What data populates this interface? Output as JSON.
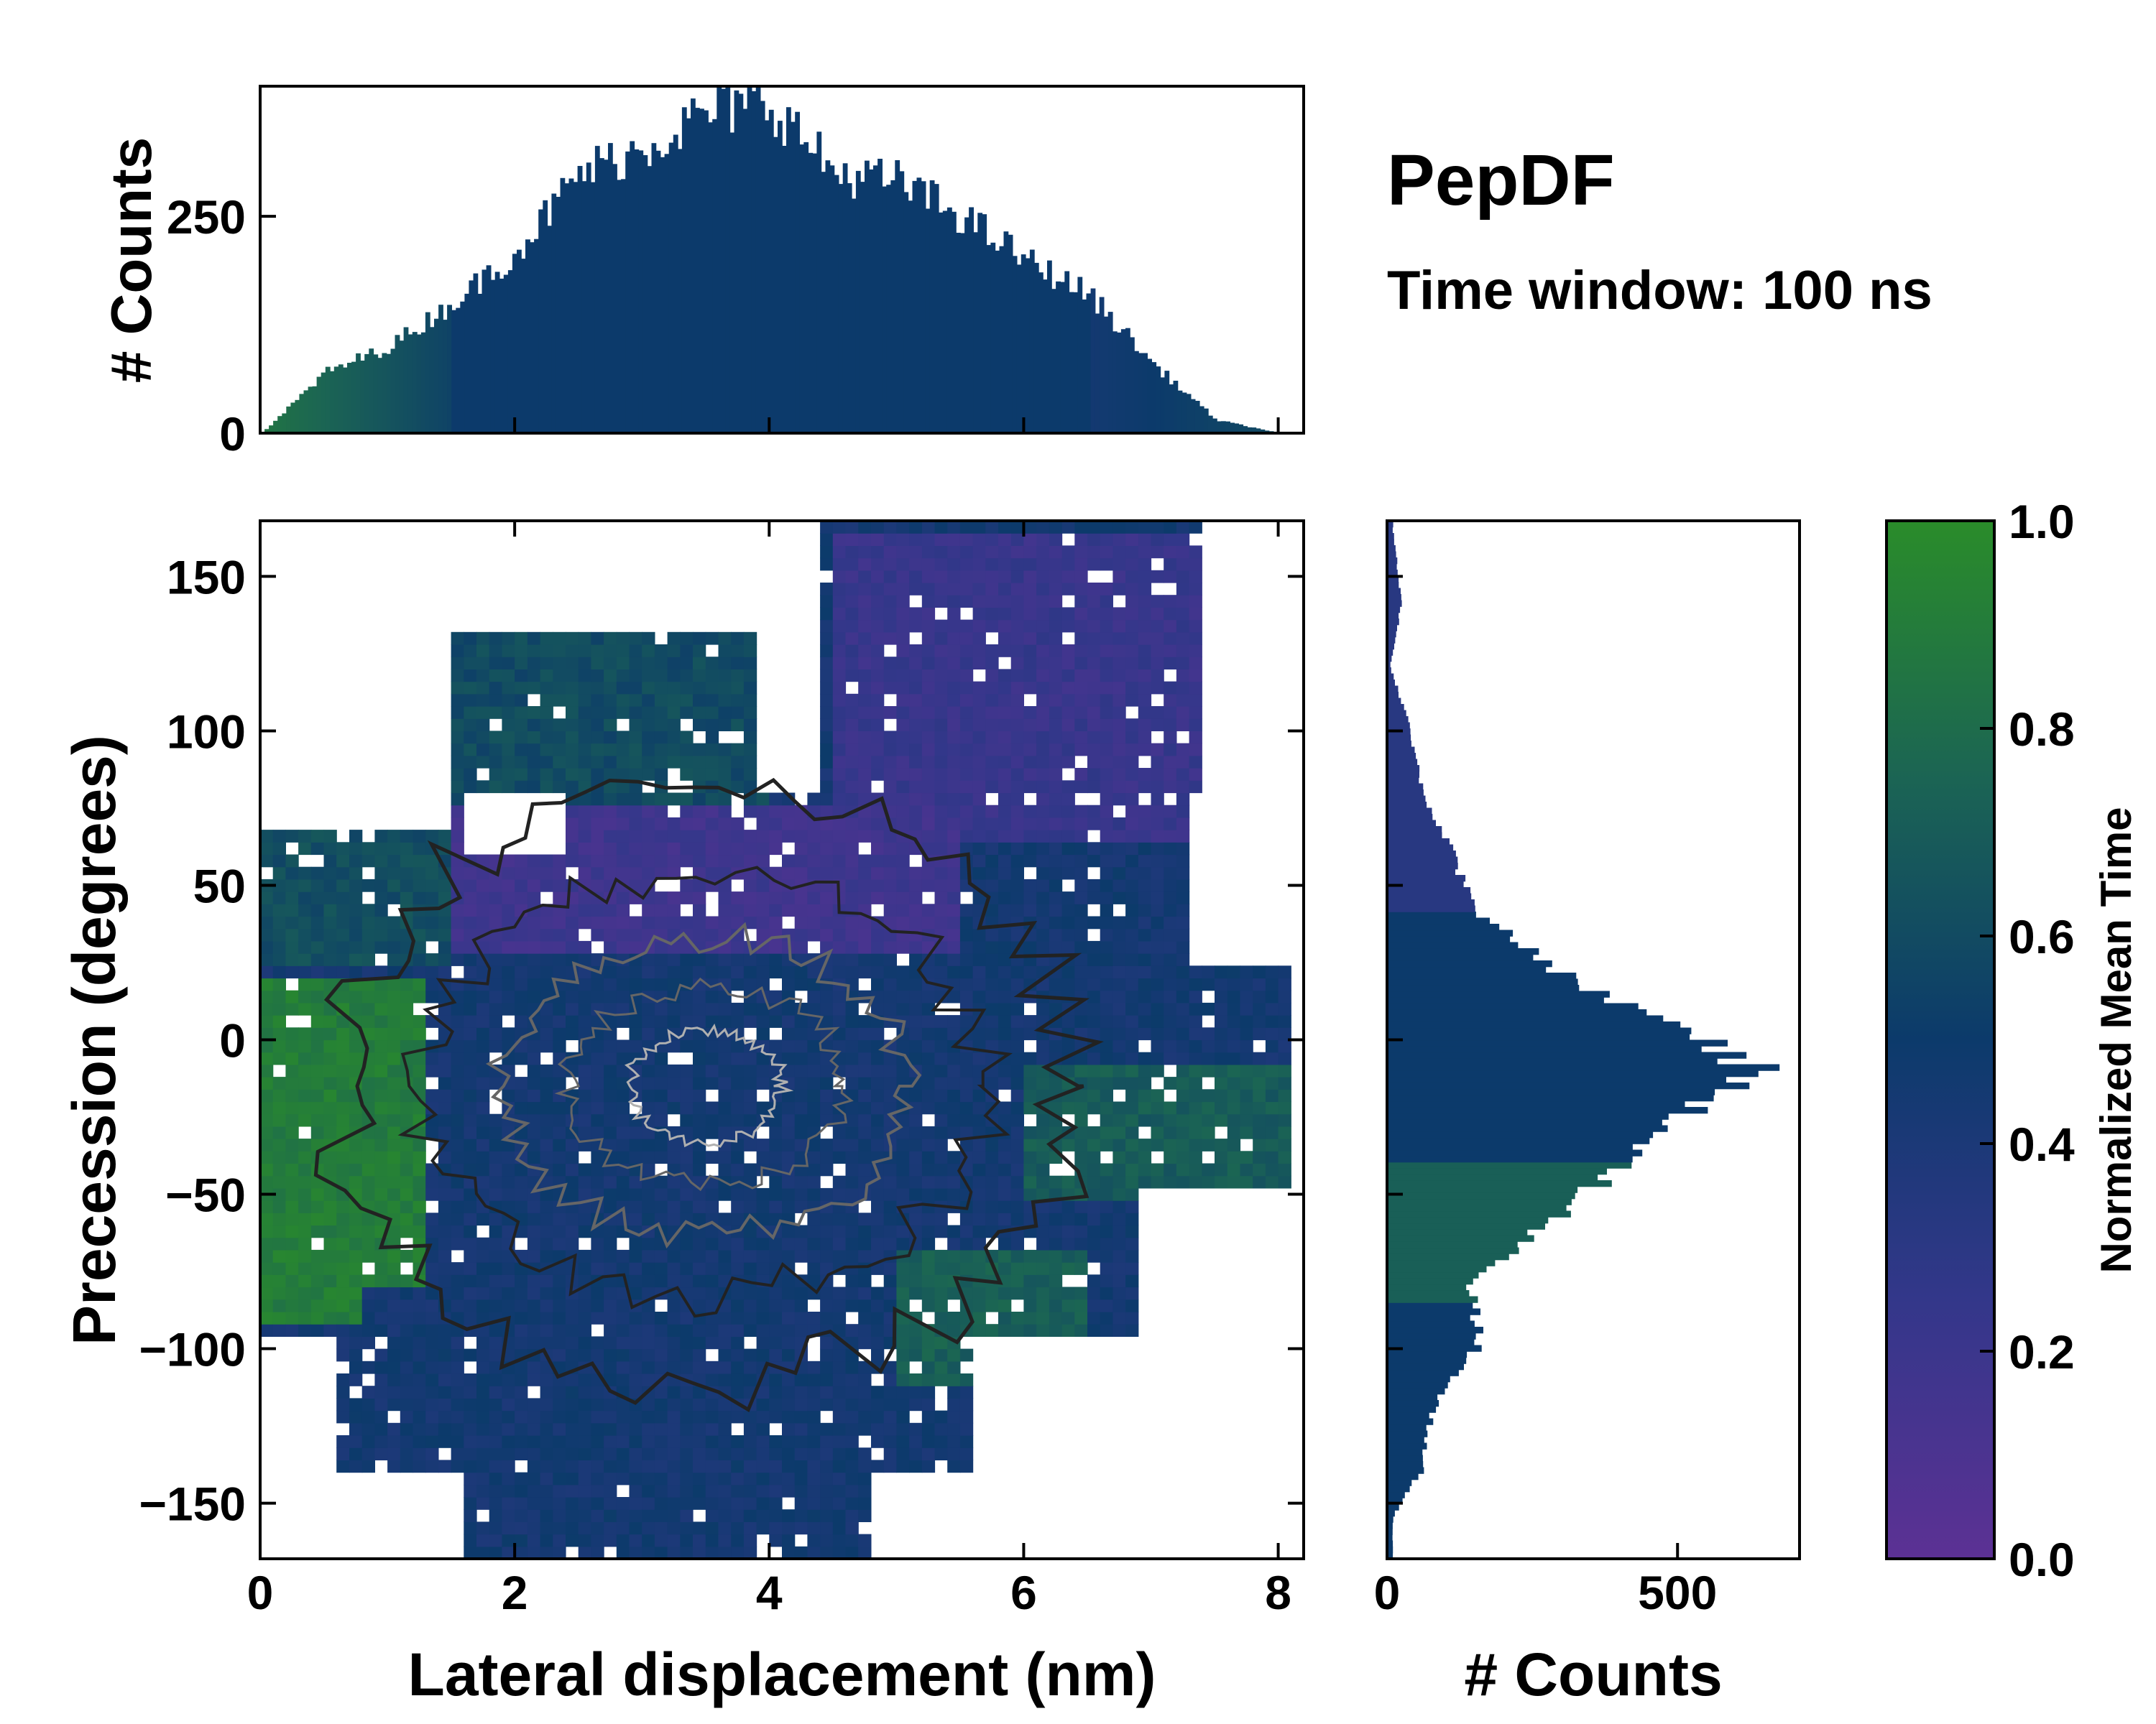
{
  "title": "PepDF",
  "subtitle": "Time window: 100 ns",
  "colors": {
    "low": "#5c3194",
    "mid": "#0c3a6b",
    "high": "#2a8c2a",
    "contour_dark": "#222222",
    "contour_mid": "#666666",
    "contour_light": "#b0b0b0"
  },
  "chart_data": [
    {
      "id": "main_2d_histogram",
      "type": "heatmap",
      "xlabel": "Lateral displacement (nm)",
      "ylabel": "Precession (degrees)",
      "xlim": [
        0,
        8.2
      ],
      "ylim": [
        -168,
        168
      ],
      "xticks": [
        0,
        2,
        4,
        6,
        8
      ],
      "xticklabels": [
        "0",
        "2",
        "4",
        "6",
        "8"
      ],
      "yticks": [
        -150,
        -100,
        -50,
        0,
        50,
        100,
        150
      ],
      "yticklabels": [
        "−150",
        "−100",
        "−50",
        "0",
        "50",
        "100",
        "150"
      ],
      "color_meaning": "Normalized Mean Time",
      "regions": [
        {
          "name": "upper-right lobe",
          "x_range": [
            4.5,
            7.5
          ],
          "y_range": [
            65,
            165
          ],
          "mean_time": 0.22
        },
        {
          "name": "upper-left lobe",
          "x_range": [
            1.2,
            4.0
          ],
          "y_range": [
            70,
            130
          ],
          "mean_time": 0.6
        },
        {
          "name": "left edge band",
          "x_range": [
            0,
            1.5
          ],
          "y_range": [
            25,
            70
          ],
          "mean_time": 0.62
        },
        {
          "name": "purple center band",
          "x_range": [
            1.5,
            5.5
          ],
          "y_range": [
            30,
            75
          ],
          "mean_time": 0.18
        },
        {
          "name": "left green core",
          "x_range": [
            0,
            1.3
          ],
          "y_range": [
            -90,
            20
          ],
          "mean_time": 0.9
        },
        {
          "name": "center core",
          "x_range": [
            1.5,
            6.5
          ],
          "y_range": [
            -80,
            20
          ],
          "mean_time": 0.45
        },
        {
          "name": "right green lobe",
          "x_range": [
            6.0,
            8.1
          ],
          "y_range": [
            -50,
            -10
          ],
          "mean_time": 0.7
        },
        {
          "name": "bottom-right green",
          "x_range": [
            5.0,
            6.5
          ],
          "y_range": [
            -110,
            -70
          ],
          "mean_time": 0.72
        },
        {
          "name": "bottom lobe",
          "x_range": [
            0.8,
            5.0
          ],
          "y_range": [
            -160,
            -80
          ],
          "mean_time": 0.45
        }
      ],
      "density_peak": {
        "x": 3.5,
        "y": -15
      }
    },
    {
      "id": "top_marginal_histogram",
      "type": "bar",
      "xlim": [
        0,
        8.2
      ],
      "ylim": [
        0,
        400
      ],
      "ylabel": "# Counts",
      "yticks": [
        0,
        250
      ],
      "yticklabels": [
        "0",
        "250"
      ],
      "x": [
        0.0,
        0.5,
        1.0,
        1.5,
        2.0,
        2.5,
        3.0,
        3.5,
        4.0,
        4.5,
        5.0,
        5.5,
        6.0,
        6.5,
        7.0,
        7.5,
        8.0
      ],
      "values": [
        0,
        70,
        100,
        150,
        210,
        300,
        330,
        370,
        380,
        300,
        290,
        250,
        200,
        160,
        80,
        15,
        0
      ]
    },
    {
      "id": "right_marginal_histogram",
      "type": "bar",
      "orientation": "horizontal",
      "xlabel": "# Counts",
      "xlim": [
        0,
        710
      ],
      "xticks": [
        0,
        500
      ],
      "xticklabels": [
        "0",
        "500"
      ],
      "y": [
        165,
        140,
        120,
        100,
        80,
        60,
        40,
        20,
        0,
        -10,
        -20,
        -40,
        -60,
        -80,
        -100,
        -120,
        -140,
        -155
      ],
      "values": [
        10,
        25,
        5,
        40,
        60,
        110,
        160,
        300,
        520,
        640,
        540,
        420,
        280,
        140,
        160,
        80,
        60,
        10
      ]
    },
    {
      "id": "colorbar",
      "type": "colorbar",
      "label": "Normalized Mean Time",
      "range": [
        0.0,
        1.0
      ],
      "ticks": [
        0.0,
        0.2,
        0.4,
        0.6,
        0.8,
        1.0
      ],
      "ticklabels": [
        "0.0",
        "0.2",
        "0.4",
        "0.6",
        "0.8",
        "1.0"
      ]
    }
  ]
}
